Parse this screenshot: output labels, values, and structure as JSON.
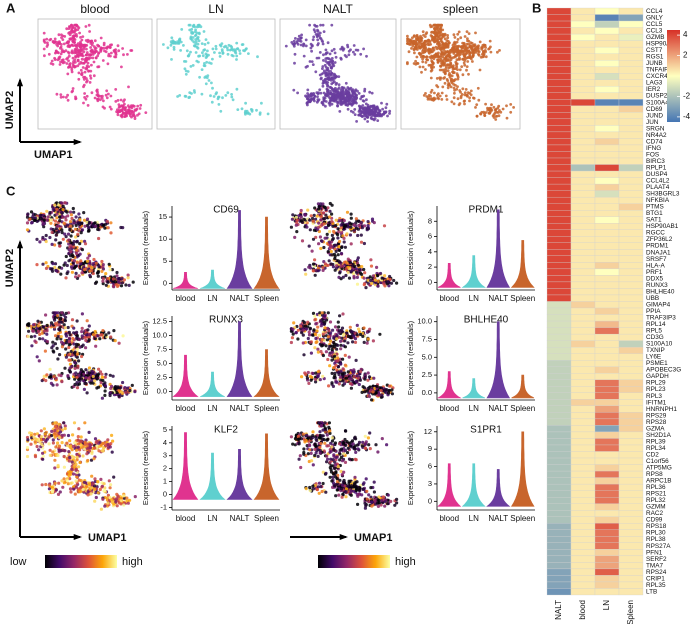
{
  "chart_data": [
    {
      "type": "umap",
      "label": "A",
      "xlabel": "UMAP1",
      "ylabel": "UMAP2",
      "panels": [
        {
          "title": "blood",
          "color": "#e0338f"
        },
        {
          "title": "LN",
          "color": "#5fd0cf"
        },
        {
          "title": "NALT",
          "color": "#6a3d9f"
        },
        {
          "title": "spleen",
          "color": "#c8652c"
        }
      ]
    },
    {
      "type": "heatmap",
      "label": "B",
      "rows": [
        "CCL4",
        "GNLY",
        "CCL5",
        "CCL3",
        "GZMB",
        "HSP90AA1",
        "CST7",
        "RGS1",
        "JUNB",
        "TNFAIP3",
        "CXCR4",
        "LAG3",
        "IER2",
        "DUSP2",
        "S100A4",
        "CD69",
        "JUND",
        "JUN",
        "SRGN",
        "NR4A2",
        "CD74",
        "IFNG",
        "FOS",
        "BIRC3",
        "RPLP1",
        "DUSP4",
        "CCL4L2",
        "PLAAT4",
        "SH3BGRL3",
        "NFKBIA",
        "PTMS",
        "BTG1",
        "SAT1",
        "HSP90AB1",
        "RGCC",
        "ZFP36L2",
        "PRDM1",
        "DNAJA1",
        "SRSF7",
        "HLA-A",
        "PRF1",
        "DDX5",
        "RUNX3",
        "BHLHE40",
        "UBB",
        "GIMAP4",
        "PPIA",
        "TRAF3IP3",
        "RPL14",
        "RPL5",
        "CD3G",
        "S100A10",
        "TXNIP",
        "LY6E",
        "PSME1",
        "APOBEC3G",
        "GAPDH",
        "RPL29",
        "RPL23",
        "RPL3",
        "IFITM1",
        "HNRNPH1",
        "RPS29",
        "RPS28",
        "GZMA",
        "SH2D1A",
        "RPL39",
        "RPL34",
        "CD2",
        "C1orf56",
        "ATP5MG",
        "RPS8",
        "ARPC1B",
        "RPL36",
        "RPS21",
        "RPL32",
        "GZMM",
        "RAC2",
        "CD99",
        "RPS18",
        "RPL30",
        "RPL38",
        "RPS27A",
        "PFN1",
        "SERF2",
        "TMA7",
        "RPS24",
        "CRIP1",
        "RPL35",
        "LTB"
      ],
      "columns": [
        "NALT",
        "blood",
        "LN",
        "Spleen"
      ],
      "values": [
        [
          4,
          0.5,
          0,
          0.5
        ],
        [
          4,
          0.5,
          -4,
          -3
        ],
        [
          4,
          0,
          -1.5,
          0
        ],
        [
          4,
          0.5,
          0,
          0.5
        ],
        [
          4,
          0,
          0.5,
          -0.5
        ],
        [
          4,
          0.5,
          0.5,
          0.5
        ],
        [
          4,
          0.5,
          0,
          0.5
        ],
        [
          4,
          0.5,
          0.5,
          0.5
        ],
        [
          4,
          0.5,
          0,
          0.5
        ],
        [
          4,
          0.5,
          0.5,
          0.5
        ],
        [
          4,
          0.5,
          -1,
          0.5
        ],
        [
          4,
          0.5,
          0.5,
          0.5
        ],
        [
          4,
          0.5,
          0,
          0.5
        ],
        [
          4,
          0.5,
          0.5,
          0.5
        ],
        [
          4,
          4,
          -4,
          -4
        ],
        [
          4,
          0.5,
          0.5,
          1
        ],
        [
          4,
          0.5,
          0.5,
          0.5
        ],
        [
          4,
          0.5,
          0.5,
          0.5
        ],
        [
          4,
          0.5,
          0,
          0.5
        ],
        [
          4,
          0.5,
          0.5,
          0.5
        ],
        [
          4,
          0.5,
          1,
          0.5
        ],
        [
          4,
          0.5,
          0.5,
          0.5
        ],
        [
          4,
          0.5,
          0.5,
          0.5
        ],
        [
          4,
          0.5,
          0.5,
          0.5
        ],
        [
          4,
          -2,
          4,
          -1.5
        ],
        [
          4,
          0.5,
          0.5,
          0.5
        ],
        [
          4,
          0.5,
          0,
          0.5
        ],
        [
          4,
          0.5,
          1,
          0.5
        ],
        [
          4,
          0.5,
          -1,
          0.5
        ],
        [
          4,
          0.5,
          0.5,
          0.5
        ],
        [
          4,
          0.5,
          0.5,
          1
        ],
        [
          4,
          0.5,
          0.5,
          0.5
        ],
        [
          4,
          0.5,
          0,
          0.5
        ],
        [
          4,
          0.5,
          0.5,
          0.5
        ],
        [
          4,
          0.5,
          0.5,
          0.5
        ],
        [
          4,
          0.5,
          0.5,
          0.5
        ],
        [
          4,
          0.5,
          0.5,
          0.5
        ],
        [
          4,
          0.5,
          0.5,
          0.5
        ],
        [
          4,
          0.5,
          0.5,
          0.5
        ],
        [
          4,
          0.5,
          1,
          0.5
        ],
        [
          4,
          0.5,
          0,
          0.5
        ],
        [
          4,
          0.5,
          0.5,
          0.5
        ],
        [
          4,
          0.5,
          0.5,
          0.5
        ],
        [
          4,
          0.5,
          0.5,
          0.5
        ],
        [
          4,
          0.5,
          0.5,
          0.5
        ],
        [
          -1,
          1,
          0.5,
          0.5
        ],
        [
          -1,
          0.5,
          1,
          0.5
        ],
        [
          -1,
          0.5,
          0.5,
          0.5
        ],
        [
          -1,
          0.5,
          1.5,
          0.5
        ],
        [
          -1,
          0.5,
          3,
          0.5
        ],
        [
          -1,
          0.5,
          0.5,
          0.5
        ],
        [
          -1,
          1,
          0.5,
          -1.5
        ],
        [
          -1,
          0.5,
          0.5,
          1
        ],
        [
          -1,
          0.5,
          0.5,
          0.5
        ],
        [
          -1.5,
          0.5,
          0.5,
          0.5
        ],
        [
          -1.5,
          0.5,
          1,
          0.5
        ],
        [
          -1.5,
          0.5,
          0.5,
          0.5
        ],
        [
          -1.5,
          0.5,
          3,
          1
        ],
        [
          -1.5,
          0.5,
          3,
          1
        ],
        [
          -1.5,
          0.5,
          3,
          0.5
        ],
        [
          -1.5,
          1,
          1,
          0.5
        ],
        [
          -1.5,
          0.5,
          2,
          0.5
        ],
        [
          -1.5,
          0.5,
          3,
          1
        ],
        [
          -1.5,
          0.5,
          3,
          1
        ],
        [
          -2,
          0.5,
          -3,
          1
        ],
        [
          -2,
          0.5,
          1,
          0.5
        ],
        [
          -2,
          0.5,
          3,
          0.5
        ],
        [
          -2,
          0.5,
          3,
          0.5
        ],
        [
          -2,
          0.5,
          0.5,
          0.5
        ],
        [
          -2,
          0.5,
          0.5,
          0.5
        ],
        [
          -2,
          0.5,
          1,
          0.5
        ],
        [
          -2,
          0.5,
          3,
          0.5
        ],
        [
          -2,
          0.5,
          1,
          0.5
        ],
        [
          -2,
          0.5,
          3,
          0.5
        ],
        [
          -2,
          0.5,
          3,
          0.5
        ],
        [
          -2,
          0.5,
          3,
          0.5
        ],
        [
          -2,
          0.5,
          1,
          0.5
        ],
        [
          -2,
          0.5,
          0.5,
          0.5
        ],
        [
          -2,
          0.5,
          1,
          0.5
        ],
        [
          -2.5,
          0.5,
          3.5,
          0.5
        ],
        [
          -2.5,
          0.5,
          3,
          0.5
        ],
        [
          -2.5,
          0.5,
          3,
          0.5
        ],
        [
          -2.5,
          0.5,
          3,
          0.5
        ],
        [
          -2.5,
          0.5,
          1,
          0.5
        ],
        [
          -2.5,
          0.5,
          2,
          0.5
        ],
        [
          -2.5,
          0.5,
          2,
          0.5
        ],
        [
          -3,
          0.5,
          3.5,
          0.5
        ],
        [
          -3,
          0.5,
          1,
          0.5
        ],
        [
          -3,
          0.5,
          1,
          0.5
        ],
        [
          -3.5,
          0.5,
          0.5,
          0.5
        ]
      ],
      "zlim": [
        -4.5,
        4.5
      ],
      "zticks": [
        4,
        2,
        -2,
        -4
      ],
      "colors": [
        "#4575b4",
        "#ffffbf",
        "#d73027"
      ]
    },
    {
      "type": "violin-grid",
      "label": "C",
      "xlabel": "UMAP1",
      "ylabel": "UMAP2",
      "legend_low": "low",
      "legend_high": "high",
      "colormap": [
        "#000004",
        "#420a68",
        "#932667",
        "#dd513a",
        "#fca50a",
        "#fcffa4"
      ],
      "violin_ylabel": "Expression (residuals)",
      "categories": [
        "blood",
        "LN",
        "NALT",
        "Spleen"
      ],
      "colors": [
        "#e0338f",
        "#5fd0cf",
        "#6a3d9f",
        "#c8652c"
      ],
      "panels": [
        {
          "title": "CD69",
          "values": [
            2.5,
            3,
            16.5,
            15
          ],
          "ylim": [
            -1.5,
            17.5
          ],
          "yticks": [
            0,
            5,
            10,
            15
          ]
        },
        {
          "title": "PRDM1",
          "values": [
            2.5,
            3.5,
            9.5,
            5.5
          ],
          "ylim": [
            -1,
            10
          ],
          "yticks": [
            0,
            2,
            4,
            6,
            8
          ]
        },
        {
          "title": "RUNX3",
          "values": [
            6.5,
            3.5,
            12.5,
            7.5
          ],
          "ylim": [
            -1.5,
            13.5
          ],
          "yticks": [
            {
              "value": 0,
              "label": "0.0"
            },
            {
              "value": 2.5,
              "label": "2.5"
            },
            {
              "value": 5,
              "label": "5.0"
            },
            {
              "value": 7.5,
              "label": "7.5"
            },
            {
              "value": 10,
              "label": "10.0"
            },
            {
              "value": 12.5,
              "label": "12.5"
            }
          ]
        },
        {
          "title": "BHLHE40",
          "values": [
            3,
            2,
            10,
            2.5
          ],
          "ylim": [
            -1,
            10.8
          ],
          "yticks": [
            {
              "value": 0,
              "label": "0.0"
            },
            {
              "value": 2.5,
              "label": "2.5"
            },
            {
              "value": 5,
              "label": "5.0"
            },
            {
              "value": 7.5,
              "label": "7.5"
            },
            {
              "value": 10,
              "label": "10.0"
            }
          ]
        },
        {
          "title": "KLF2",
          "values": [
            4.8,
            3.2,
            3.5,
            4.7
          ],
          "ylim": [
            -1.2,
            5.3
          ],
          "yticks": [
            -1,
            0,
            1,
            2,
            3,
            4,
            5
          ]
        },
        {
          "title": "S1PR1",
          "values": [
            6.5,
            6.5,
            5.5,
            12
          ],
          "ylim": [
            -1.5,
            13
          ],
          "yticks": [
            0,
            3,
            6,
            9,
            12
          ]
        }
      ]
    }
  ]
}
